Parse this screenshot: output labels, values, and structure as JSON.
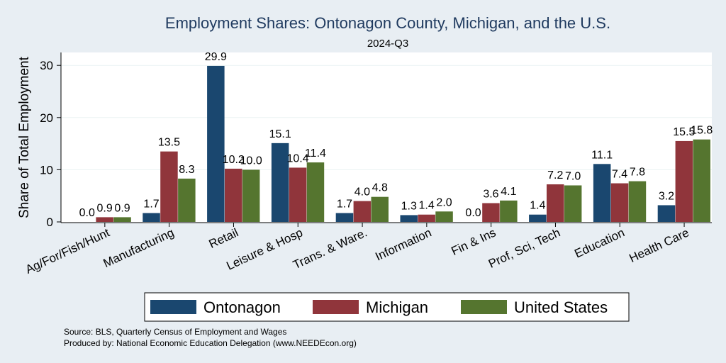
{
  "chart_data": {
    "type": "bar",
    "title": "Employment Shares: Ontonagon County, Michigan, and the U.S.",
    "subtitle": "2024-Q3",
    "xlabel": "",
    "ylabel": "Share of Total Employment",
    "ylim": [
      0,
      32
    ],
    "yticks": [
      0,
      10,
      20,
      30
    ],
    "grid": true,
    "legend_position": "bottom",
    "categories": [
      "Ag/For/Fish/Hunt",
      "Manufacturing",
      "Retail",
      "Leisure & Hosp",
      "Trans. & Ware.",
      "Information",
      "Fin & Ins",
      "Prof, Sci, Tech",
      "Education",
      "Health Care"
    ],
    "series": [
      {
        "name": "Ontonagon",
        "color": "#1a476f",
        "values": [
          0.0,
          1.7,
          29.9,
          15.1,
          1.7,
          1.3,
          0.0,
          1.4,
          11.1,
          3.2
        ],
        "labels": [
          "0.0",
          "1.7",
          "29.9",
          "15.1",
          "1.7",
          "1.3",
          "0.0",
          "1.4",
          "11.1",
          "3.2"
        ]
      },
      {
        "name": "Michigan",
        "color": "#90353b",
        "values": [
          0.9,
          13.5,
          10.2,
          10.4,
          4.0,
          1.4,
          3.6,
          7.2,
          7.4,
          15.5
        ],
        "labels": [
          "0.9",
          "13.5",
          "10.2",
          "10.4",
          "4.0",
          "1.4",
          "3.6",
          "7.2",
          "7.4",
          "15.5"
        ]
      },
      {
        "name": "United States",
        "color": "#55752f",
        "values": [
          0.9,
          8.3,
          10.0,
          11.4,
          4.8,
          2.0,
          4.1,
          7.0,
          7.8,
          15.8
        ],
        "labels": [
          "0.9",
          "8.3",
          "10.0",
          "11.4",
          "4.8",
          "2.0",
          "4.1",
          "7.0",
          "7.8",
          "15.8"
        ]
      }
    ],
    "notes": [
      "Source: BLS, Quarterly Census of Employment and Wages",
      "Produced by: National Economic Education Delegation (www.NEEDEcon.org)"
    ]
  }
}
